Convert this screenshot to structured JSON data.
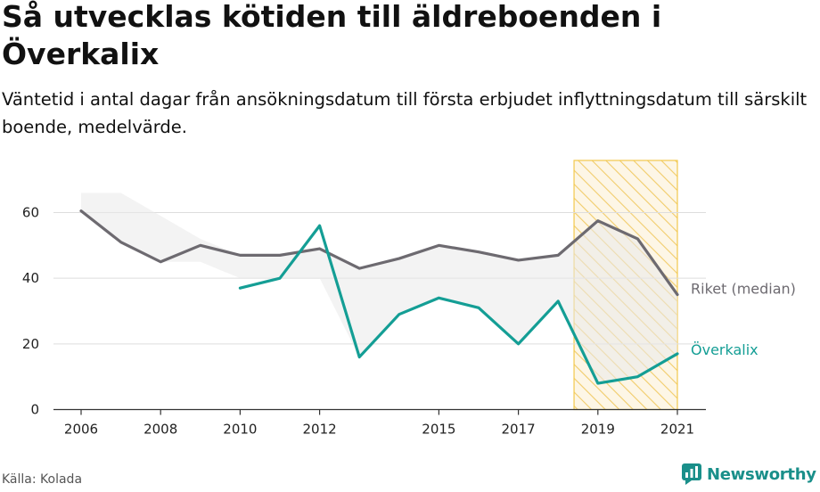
{
  "title": "Så utvecklas kötiden till äldreboenden i Överkalix",
  "subtitle": "Väntetid i antal dagar från ansökningsdatum till första erbjudet inflyttningsdatum till särskilt boende, medelvärde.",
  "source": "Källa: Kolada",
  "brand": "Newsworthy",
  "colors": {
    "riket": "#6d6a70",
    "overkalix": "#149e95",
    "band": "#efefef",
    "highlight_stroke": "#f2c94c",
    "highlight_fill": "#fdf3dc",
    "grid": "#dddddd",
    "axis": "#333333"
  },
  "chart_data": {
    "type": "line",
    "x_ticks": [
      2006,
      2008,
      2010,
      2012,
      2015,
      2017,
      2019,
      2021
    ],
    "y_ticks": [
      0,
      20,
      40,
      60
    ],
    "xlim": [
      2006,
      2021
    ],
    "ylim": [
      0,
      60
    ],
    "series": [
      {
        "name": "Riket (median)",
        "x": [
          2006,
          2007,
          2008,
          2009,
          2010,
          2011,
          2012,
          2013,
          2014,
          2015,
          2016,
          2017,
          2018,
          2019,
          2020,
          2021
        ],
        "values": [
          60.5,
          51,
          45,
          50,
          47,
          47,
          49,
          43,
          46,
          50,
          48,
          45.5,
          47,
          57.5,
          52,
          35
        ]
      },
      {
        "name": "Överkalix",
        "x": [
          2010,
          2011,
          2012,
          2013,
          2014,
          2015,
          2016,
          2017,
          2018,
          2019,
          2020,
          2021
        ],
        "values": [
          37,
          40,
          56,
          16,
          29,
          34,
          31,
          20,
          33,
          8,
          10,
          17
        ]
      }
    ],
    "band": {
      "x": [
        2006,
        2007,
        2008,
        2009,
        2010,
        2011,
        2012,
        2013,
        2014,
        2015,
        2016,
        2017,
        2018,
        2019,
        2020,
        2021
      ],
      "upper": [
        66,
        66,
        59,
        52,
        47,
        47,
        49,
        43,
        46,
        50,
        48,
        45.5,
        47,
        57.5,
        52,
        35
      ],
      "lower": [
        60.5,
        51,
        45,
        45,
        40,
        40,
        40,
        16,
        29,
        34,
        31,
        20,
        33,
        8,
        10,
        17
      ]
    },
    "highlight": {
      "from": 2018.4,
      "to": 2021
    }
  }
}
